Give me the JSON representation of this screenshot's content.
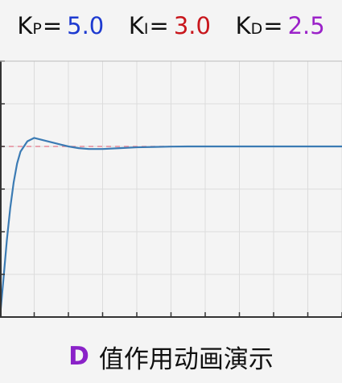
{
  "params": {
    "kp": {
      "symbol": "K",
      "sub": "P",
      "eq": "=",
      "value": "5.0",
      "color": "#1d3ad0"
    },
    "ki": {
      "symbol": "K",
      "sub": "I",
      "eq": "=",
      "value": "3.0",
      "color": "#c8161c"
    },
    "kd": {
      "symbol": "K",
      "sub": "D",
      "eq": "=",
      "value": "2.5",
      "color": "#9b22c9"
    }
  },
  "caption": {
    "mode": "D",
    "text": "值作用动画演示",
    "mode_color": "#8a22c8"
  },
  "colors": {
    "response": "#3b7bb4",
    "setpoint": "#e58a9a",
    "axes": "#333333",
    "grid": "#dcdcdc"
  },
  "chart_data": {
    "type": "line",
    "title": "",
    "xlabel": "",
    "ylabel": "",
    "xlim": [
      0,
      10
    ],
    "ylim": [
      0,
      1.5
    ],
    "grid": true,
    "setpoint": 1.0,
    "series": [
      {
        "x": [
          0,
          0.1,
          0.2,
          0.3,
          0.4,
          0.5,
          0.6,
          0.8,
          1.0,
          1.2,
          1.4,
          1.6,
          1.8,
          2.0,
          2.3,
          2.6,
          3.0,
          3.5,
          4.0,
          4.5,
          5.0,
          5.5,
          6.0,
          7.0,
          8.0,
          9.0,
          10.0
        ],
        "y": [
          0.0,
          0.22,
          0.45,
          0.64,
          0.79,
          0.9,
          0.97,
          1.03,
          1.05,
          1.04,
          1.03,
          1.02,
          1.01,
          1.0,
          0.99,
          0.985,
          0.985,
          0.99,
          0.995,
          0.997,
          0.999,
          1.0,
          1.0,
          1.0,
          1.0,
          1.0,
          1.0
        ]
      }
    ]
  }
}
